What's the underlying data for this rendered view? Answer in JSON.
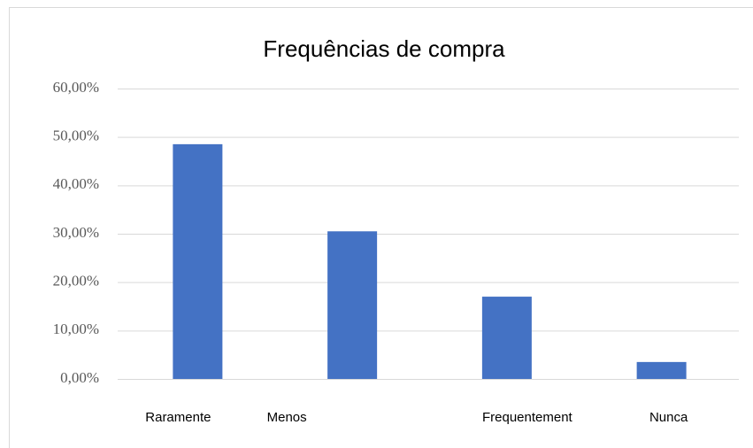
{
  "chart_data": {
    "type": "bar",
    "title": "Frequências de compra",
    "categories": [
      "Raramente",
      "Menos",
      "Frequentement",
      "Nunca"
    ],
    "values": [
      48.5,
      30.5,
      17.0,
      3.5
    ],
    "color": "#4472c4",
    "ylim": [
      0,
      60
    ],
    "yticks": [
      {
        "value": 0,
        "label": "0,00%"
      },
      {
        "value": 10,
        "label": "10,00%"
      },
      {
        "value": 20,
        "label": "20,00%"
      },
      {
        "value": 30,
        "label": "30,00%"
      },
      {
        "value": 40,
        "label": "40,00%"
      },
      {
        "value": 50,
        "label": "50,00%"
      },
      {
        "value": 60,
        "label": "60,00%"
      }
    ],
    "grid": true
  }
}
